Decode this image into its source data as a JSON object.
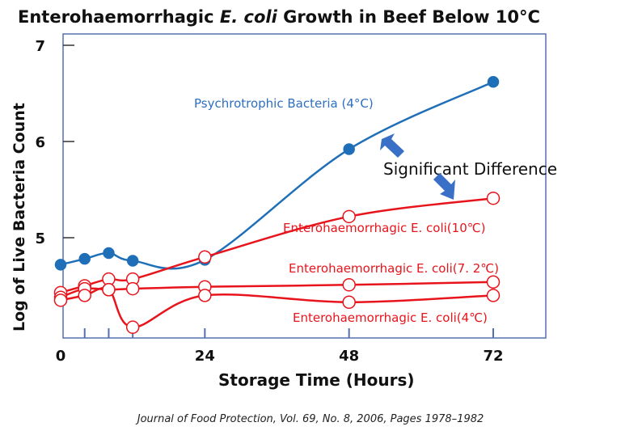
{
  "chart_data": {
    "type": "line",
    "title": "Enterohaemorrhagic E. coli Growth in Beef Below 10°C",
    "title_parts": {
      "pre": "Enterohaemorrhagic ",
      "italic": "E. coli",
      "post": " Growth in Beef Below 10°C"
    },
    "xlabel": "Storage Time (Hours)",
    "ylabel": "Log  of Live Bacteria Count",
    "xlim": [
      0,
      84
    ],
    "ylim": [
      4,
      7
    ],
    "x_ticks": [
      0,
      24,
      48,
      72
    ],
    "y_ticks": [
      5,
      6,
      7
    ],
    "minor_x_ticks": [
      4,
      8,
      12,
      24,
      48,
      72
    ],
    "grid": false,
    "x": [
      0,
      4,
      8,
      12,
      24,
      48,
      72
    ],
    "series": [
      {
        "name": "Psychrotrophic Bacteria (4°C)",
        "color": "#1f6fb8",
        "marker": "filled",
        "values": [
          4.72,
          4.78,
          4.84,
          4.76,
          4.77,
          5.92,
          6.62
        ]
      },
      {
        "name": "Enterohaemorrhagic E. coli(10℃)",
        "color": "#e8141c",
        "marker": "open",
        "values": [
          4.43,
          4.5,
          4.57,
          4.57,
          4.8,
          5.22,
          5.41
        ]
      },
      {
        "name": "Enterohaemorrhagic E. coli(7. 2℃)",
        "color": "#e8141c",
        "marker": "open",
        "values": [
          4.38,
          4.47,
          4.46,
          4.47,
          4.49,
          4.51,
          4.54
        ]
      },
      {
        "name": "Enterohaemorrhagic E. coli(4℃)",
        "color": "#e8141c",
        "marker": "open",
        "values": [
          4.35,
          4.4,
          4.46,
          4.07,
          4.4,
          4.33,
          4.4
        ]
      }
    ],
    "annotation": "Significant Difference",
    "source": "Journal of Food Protection, Vol. 69, No. 8, 2006, Pages 1978–1982"
  }
}
